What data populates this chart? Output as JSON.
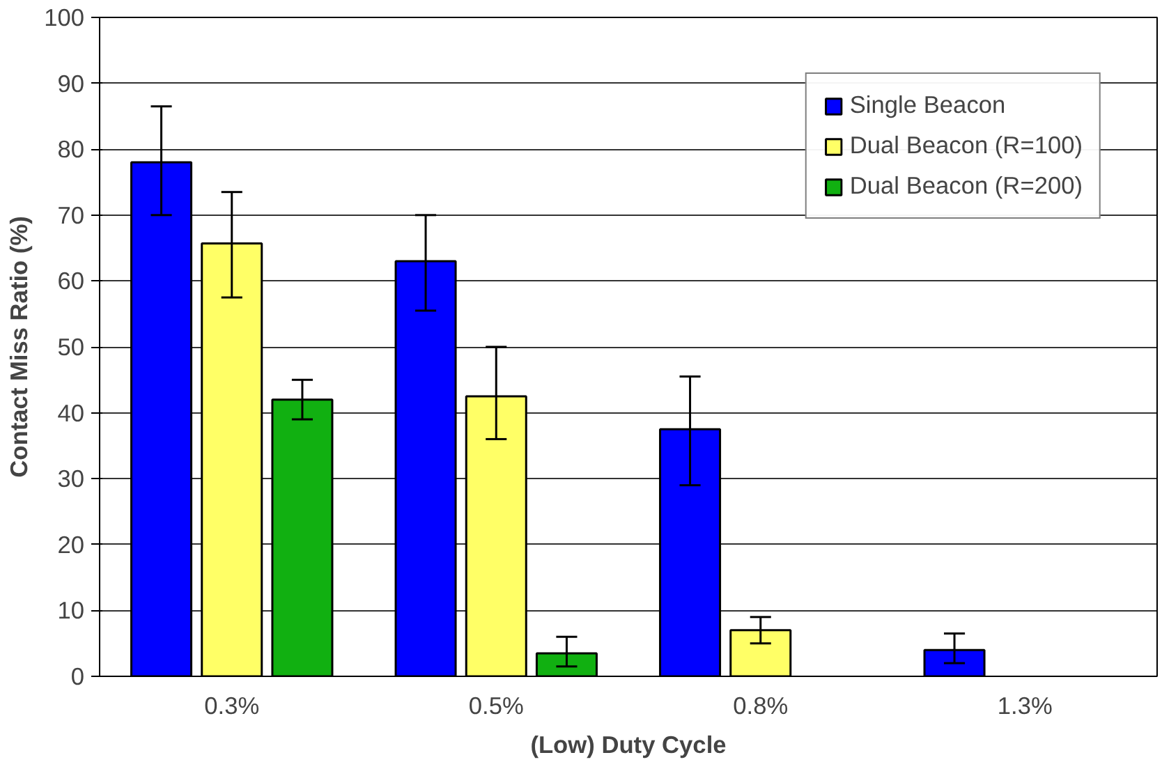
{
  "chart_data": {
    "type": "bar",
    "xlabel": "(Low) Duty Cycle",
    "ylabel": "Contact Miss Ratio (%)",
    "categories": [
      "0.3%",
      "0.5%",
      "0.8%",
      "1.3%"
    ],
    "series": [
      {
        "name": "Single Beacon",
        "color": "#0000ff",
        "values": [
          78,
          63,
          37.5,
          4
        ],
        "errors": [
          [
            70,
            86.5
          ],
          [
            55.5,
            70
          ],
          [
            29,
            45.5
          ],
          [
            2,
            6.5
          ]
        ]
      },
      {
        "name": "Dual Beacon (R=100)",
        "color": "#ffff66",
        "values": [
          65.7,
          42.5,
          7,
          null
        ],
        "errors": [
          [
            57.5,
            73.5
          ],
          [
            36,
            50
          ],
          [
            5,
            9
          ],
          null
        ]
      },
      {
        "name": "Dual Beacon (R=200)",
        "color": "#11b011",
        "values": [
          42,
          3.5,
          null,
          null
        ],
        "errors": [
          [
            39,
            45
          ],
          [
            1.5,
            6
          ],
          null,
          null
        ]
      }
    ],
    "ylim": [
      0,
      100
    ],
    "yticks": [
      0,
      10,
      20,
      30,
      40,
      50,
      60,
      70,
      80,
      90,
      100
    ],
    "grid": "y",
    "legend": "top right"
  }
}
